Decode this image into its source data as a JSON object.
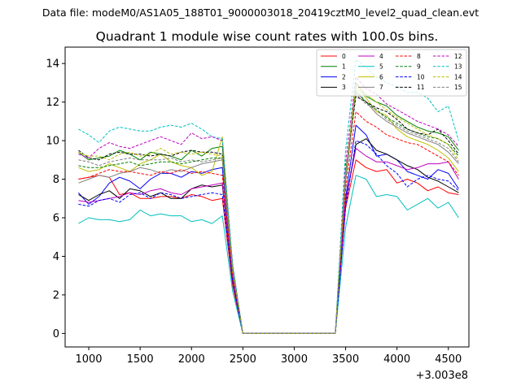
{
  "suptitle": "Data file: modeM0/AS1A05_188T01_9000003018_20419cztM0_level2_quad_clean.evt",
  "chart_data": {
    "type": "line",
    "title": "Quadrant 1 module wise count rates with 100.0s bins.",
    "xlabel": "",
    "ylabel": "",
    "x_offset_label": "+3.003e8",
    "xlim": [
      770,
      4700
    ],
    "ylim": [
      -0.7,
      14.85
    ],
    "x_ticks": [
      1000,
      1500,
      2000,
      2500,
      3000,
      3500,
      4000,
      4500
    ],
    "x_tick_labels": [
      "1000",
      "1500",
      "2000",
      "2500",
      "3000",
      "3500",
      "4000",
      "4500"
    ],
    "y_ticks": [
      0,
      2,
      4,
      6,
      8,
      10,
      12,
      14
    ],
    "y_tick_labels": [
      "0",
      "2",
      "4",
      "6",
      "8",
      "10",
      "12",
      "14"
    ],
    "grid": false,
    "legend_position": "top-right",
    "legend_columns": 4,
    "x": [
      900,
      1000,
      1100,
      1200,
      1300,
      1400,
      1500,
      1600,
      1700,
      1800,
      1900,
      2000,
      2100,
      2200,
      2300,
      2400,
      2500,
      2600,
      2700,
      2800,
      2900,
      3000,
      3100,
      3200,
      3300,
      3400,
      3500,
      3600,
      3700,
      3800,
      3900,
      4000,
      4100,
      4200,
      4300,
      4400,
      4500,
      4600
    ],
    "series": [
      {
        "name": "0",
        "color": "#ff0000",
        "dash": "solid",
        "values": [
          8.0,
          8.1,
          8.2,
          8.1,
          7.2,
          7.3,
          7.0,
          7.0,
          7.1,
          7.1,
          7.0,
          7.2,
          7.1,
          6.9,
          7.0,
          2.5,
          0,
          0,
          0,
          0,
          0,
          0,
          0,
          0,
          0,
          0,
          6.5,
          9.0,
          8.6,
          8.4,
          8.5,
          7.8,
          8.0,
          7.8,
          7.4,
          7.6,
          7.3,
          7.2
        ]
      },
      {
        "name": "1",
        "color": "#008000",
        "dash": "solid",
        "values": [
          9.4,
          9.0,
          9.1,
          9.2,
          9.5,
          9.3,
          9.0,
          9.4,
          9.3,
          9.2,
          9.0,
          9.5,
          9.2,
          9.6,
          9.7,
          3.5,
          0,
          0,
          0,
          0,
          0,
          0,
          0,
          0,
          0,
          0,
          8.0,
          13.0,
          12.3,
          12.0,
          11.8,
          11.3,
          11.0,
          10.7,
          10.5,
          10.4,
          10.2,
          9.5
        ]
      },
      {
        "name": "2",
        "color": "#0000ff",
        "dash": "solid",
        "values": [
          7.3,
          6.7,
          7.1,
          7.8,
          8.1,
          7.9,
          7.5,
          8.0,
          8.3,
          8.3,
          8.1,
          8.4,
          8.3,
          8.5,
          8.6,
          3.0,
          0,
          0,
          0,
          0,
          0,
          0,
          0,
          0,
          0,
          0,
          7.0,
          10.8,
          10.3,
          9.2,
          9.3,
          9.0,
          8.4,
          8.2,
          8.0,
          8.5,
          8.3,
          7.5
        ]
      },
      {
        "name": "3",
        "color": "#000000",
        "dash": "solid",
        "values": [
          7.2,
          6.9,
          7.2,
          7.4,
          7.0,
          7.5,
          7.4,
          7.1,
          7.3,
          7.0,
          7.0,
          7.5,
          7.7,
          7.6,
          7.7,
          2.8,
          0,
          0,
          0,
          0,
          0,
          0,
          0,
          0,
          0,
          0,
          6.8,
          9.8,
          10.1,
          9.5,
          9.3,
          9.0,
          8.7,
          8.5,
          8.1,
          7.9,
          7.6,
          7.3
        ]
      },
      {
        "name": "4",
        "color": "#bf00bf",
        "dash": "solid",
        "values": [
          6.9,
          6.8,
          6.9,
          7.0,
          7.1,
          7.3,
          7.2,
          7.4,
          7.5,
          7.3,
          7.2,
          7.5,
          7.6,
          7.7,
          7.8,
          2.9,
          0,
          0,
          0,
          0,
          0,
          0,
          0,
          0,
          0,
          0,
          6.9,
          9.6,
          9.2,
          8.9,
          8.9,
          8.7,
          8.5,
          8.6,
          8.8,
          8.8,
          8.9,
          8.0
        ]
      },
      {
        "name": "5",
        "color": "#00bfbf",
        "dash": "solid",
        "values": [
          5.7,
          6.0,
          5.9,
          5.9,
          5.8,
          5.9,
          6.4,
          6.1,
          6.2,
          6.1,
          6.1,
          5.8,
          5.9,
          5.7,
          6.1,
          2.2,
          0,
          0,
          0,
          0,
          0,
          0,
          0,
          0,
          0,
          0,
          5.5,
          8.2,
          8.0,
          7.1,
          7.2,
          7.1,
          6.4,
          6.7,
          7.0,
          6.5,
          6.8,
          6.0
        ]
      },
      {
        "name": "6",
        "color": "#bfbf00",
        "dash": "solid",
        "values": [
          8.6,
          8.4,
          8.5,
          8.8,
          8.6,
          8.4,
          8.8,
          9.0,
          9.3,
          8.9,
          8.7,
          8.6,
          8.2,
          8.4,
          10.2,
          3.4,
          0,
          0,
          0,
          0,
          0,
          0,
          0,
          0,
          0,
          0,
          8.2,
          12.8,
          12.2,
          11.5,
          11.3,
          10.6,
          10.2,
          10.0,
          9.8,
          9.5,
          9.1,
          8.4
        ]
      },
      {
        "name": "7",
        "color": "#808080",
        "dash": "solid",
        "values": [
          7.8,
          8.0,
          8.2,
          8.1,
          8.3,
          8.4,
          8.6,
          8.5,
          8.3,
          8.5,
          8.4,
          8.6,
          8.8,
          8.9,
          9.0,
          3.2,
          0,
          0,
          0,
          0,
          0,
          0,
          0,
          0,
          0,
          0,
          7.9,
          12.5,
          12.0,
          11.4,
          11.0,
          10.7,
          10.4,
          10.2,
          10.0,
          9.8,
          9.4,
          8.8
        ]
      },
      {
        "name": "8",
        "color": "#ff0000",
        "dash": "dashed",
        "values": [
          8.0,
          8.1,
          8.3,
          8.5,
          8.4,
          8.4,
          8.3,
          8.2,
          8.4,
          8.3,
          8.5,
          8.3,
          8.4,
          8.3,
          8.2,
          3.0,
          0,
          0,
          0,
          0,
          0,
          0,
          0,
          0,
          0,
          0,
          7.5,
          11.5,
          11.0,
          10.7,
          10.3,
          10.1,
          9.9,
          9.8,
          9.5,
          9.2,
          8.9,
          8.2
        ]
      },
      {
        "name": "9",
        "color": "#008000",
        "dash": "dashed",
        "values": [
          8.7,
          8.6,
          8.6,
          8.7,
          8.8,
          8.9,
          8.7,
          8.8,
          8.9,
          8.9,
          8.8,
          8.9,
          9.0,
          9.1,
          9.1,
          3.3,
          0,
          0,
          0,
          0,
          0,
          0,
          0,
          0,
          0,
          0,
          8.2,
          12.6,
          12.0,
          11.6,
          11.2,
          10.9,
          10.6,
          10.4,
          10.2,
          10.1,
          9.8,
          9.2
        ]
      },
      {
        "name": "10",
        "color": "#0000ff",
        "dash": "dashed",
        "values": [
          6.7,
          6.6,
          6.9,
          7.0,
          6.8,
          7.2,
          7.3,
          7.0,
          7.3,
          7.2,
          7.0,
          7.1,
          7.2,
          7.3,
          7.2,
          2.7,
          0,
          0,
          0,
          0,
          0,
          0,
          0,
          0,
          0,
          0,
          6.5,
          10.0,
          9.8,
          9.3,
          8.7,
          8.3,
          7.6,
          8.0,
          8.2,
          8.0,
          7.9,
          7.4
        ]
      },
      {
        "name": "11",
        "color": "#000000",
        "dash": "dashed",
        "values": [
          9.5,
          9.1,
          9.0,
          9.3,
          9.4,
          9.3,
          9.3,
          9.2,
          9.3,
          9.2,
          9.4,
          9.5,
          9.4,
          9.4,
          9.3,
          3.4,
          0,
          0,
          0,
          0,
          0,
          0,
          0,
          0,
          0,
          0,
          8.4,
          12.3,
          12.0,
          11.7,
          11.5,
          11.1,
          10.6,
          10.4,
          10.3,
          10.6,
          10.0,
          9.3
        ]
      },
      {
        "name": "12",
        "color": "#bf00bf",
        "dash": "dashed",
        "values": [
          9.3,
          9.1,
          9.6,
          9.9,
          9.7,
          9.6,
          9.8,
          10.0,
          10.2,
          10.0,
          9.8,
          10.4,
          10.1,
          10.2,
          10.0,
          3.6,
          0,
          0,
          0,
          0,
          0,
          0,
          0,
          0,
          0,
          0,
          8.8,
          13.3,
          12.7,
          12.4,
          11.9,
          11.6,
          11.3,
          11.0,
          10.8,
          10.6,
          10.3,
          9.7
        ]
      },
      {
        "name": "13",
        "color": "#00bfbf",
        "dash": "dashed",
        "values": [
          10.6,
          10.3,
          9.9,
          10.5,
          10.7,
          10.6,
          10.5,
          10.5,
          10.7,
          10.8,
          10.7,
          10.9,
          10.6,
          10.2,
          10.1,
          3.6,
          0,
          0,
          0,
          0,
          0,
          0,
          0,
          0,
          0,
          0,
          9.5,
          14.2,
          13.8,
          13.3,
          13.0,
          12.8,
          12.5,
          12.5,
          12.2,
          11.5,
          11.8,
          10.0
        ]
      },
      {
        "name": "14",
        "color": "#bfbf00",
        "dash": "dashed",
        "values": [
          9.4,
          9.2,
          9.2,
          9.0,
          9.3,
          9.4,
          9.2,
          9.3,
          9.6,
          9.3,
          9.4,
          9.3,
          9.4,
          9.3,
          9.2,
          3.3,
          0,
          0,
          0,
          0,
          0,
          0,
          0,
          0,
          0,
          0,
          8.3,
          12.9,
          12.4,
          12.0,
          11.6,
          11.2,
          10.9,
          10.6,
          10.3,
          10.1,
          9.8,
          9.0
        ]
      },
      {
        "name": "15",
        "color": "#808080",
        "dash": "dashed",
        "values": [
          9.0,
          8.9,
          8.7,
          8.9,
          9.0,
          9.1,
          9.0,
          9.0,
          9.0,
          9.1,
          8.9,
          9.0,
          8.9,
          9.0,
          9.1,
          3.3,
          0,
          0,
          0,
          0,
          0,
          0,
          0,
          0,
          0,
          0,
          8.3,
          12.4,
          11.9,
          11.6,
          11.1,
          10.8,
          10.5,
          10.3,
          10.1,
          9.9,
          9.6,
          8.9
        ]
      }
    ]
  }
}
